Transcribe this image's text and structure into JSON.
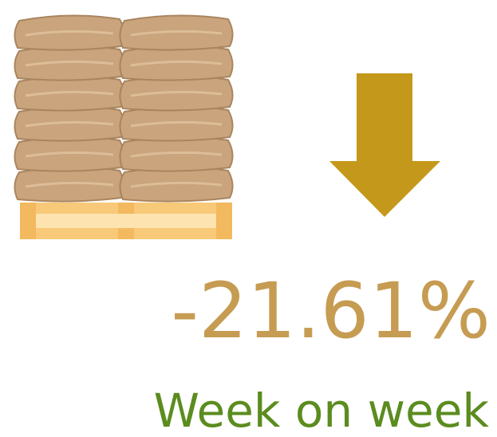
{
  "kpi": {
    "value": "-21.61%",
    "label": "Week on week"
  }
}
